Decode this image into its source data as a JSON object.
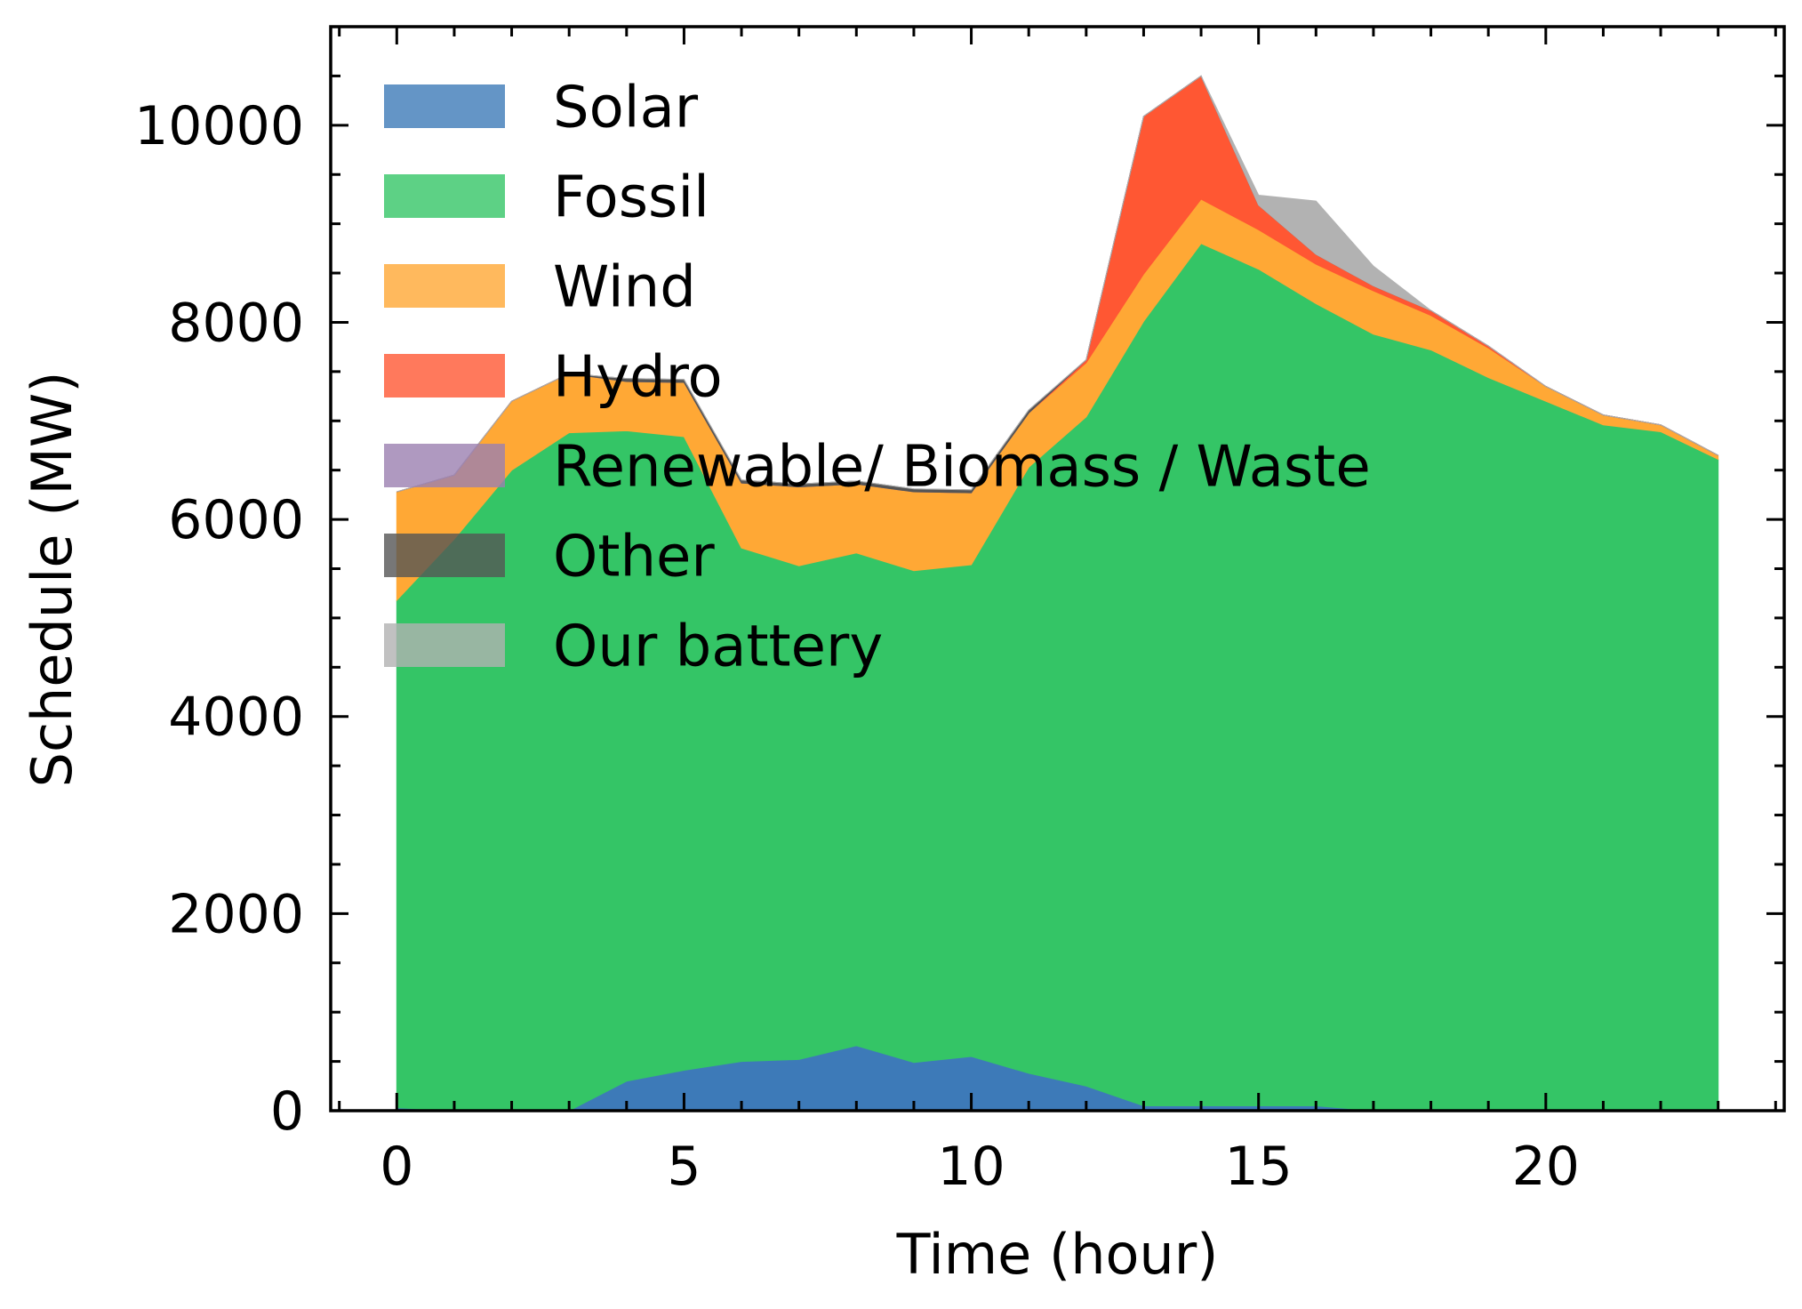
{
  "chart_data": {
    "type": "area",
    "stacked": true,
    "xlabel": "Time (hour)",
    "ylabel": "Schedule (MW)",
    "xlim": [
      -1.15,
      24.15
    ],
    "ylim": [
      0,
      11000
    ],
    "xticks": [
      0,
      5,
      10,
      15,
      20
    ],
    "yticks": [
      0,
      2000,
      4000,
      6000,
      8000,
      10000
    ],
    "xtick_labels": [
      "0",
      "5",
      "10",
      "15",
      "20"
    ],
    "ytick_labels": [
      "0",
      "2000",
      "4000",
      "6000",
      "8000",
      "10000"
    ],
    "legend_position": "upper-left",
    "grid": false,
    "x": [
      0,
      1,
      2,
      3,
      4,
      5,
      6,
      7,
      8,
      9,
      10,
      11,
      12,
      13,
      14,
      15,
      16,
      17,
      18,
      19,
      20,
      21,
      22,
      23
    ],
    "series": [
      {
        "name": "Solar",
        "color": "#3d7ab8",
        "values": [
          30,
          0,
          0,
          0,
          300,
          410,
          500,
          520,
          660,
          490,
          550,
          380,
          250,
          50,
          50,
          50,
          50,
          0,
          0,
          0,
          0,
          0,
          0,
          0
        ]
      },
      {
        "name": "Fossil",
        "color": "#34c566",
        "values": [
          5150,
          5800,
          6500,
          6880,
          6600,
          6430,
          5210,
          5010,
          5000,
          4990,
          4990,
          6150,
          6790,
          7960,
          8750,
          8490,
          8140,
          7880,
          7720,
          7440,
          7200,
          6960,
          6890,
          6610
        ]
      },
      {
        "name": "Wind",
        "color": "#ffa835",
        "values": [
          1100,
          650,
          700,
          600,
          500,
          550,
          660,
          800,
          700,
          800,
          730,
          550,
          550,
          480,
          450,
          400,
          400,
          440,
          350,
          300,
          150,
          100,
          70,
          40
        ]
      },
      {
        "name": "Hydro",
        "color": "#ff5733",
        "values": [
          0,
          0,
          0,
          0,
          0,
          0,
          0,
          0,
          0,
          0,
          0,
          0,
          30,
          1600,
          1250,
          250,
          100,
          50,
          50,
          20,
          0,
          0,
          0,
          0
        ]
      },
      {
        "name": "Renewable/ Biomass / Waste",
        "color": "#9b7fb0",
        "values": [
          0,
          0,
          0,
          0,
          0,
          0,
          0,
          0,
          0,
          0,
          0,
          0,
          0,
          0,
          0,
          0,
          0,
          0,
          0,
          0,
          0,
          0,
          0,
          0
        ]
      },
      {
        "name": "Other",
        "color": "#555555",
        "values": [
          0,
          0,
          0,
          0,
          30,
          30,
          30,
          30,
          30,
          30,
          30,
          30,
          0,
          0,
          0,
          0,
          0,
          0,
          0,
          0,
          0,
          0,
          0,
          0
        ]
      },
      {
        "name": "Our battery",
        "color": "#b2b2b2",
        "values": [
          0,
          0,
          0,
          0,
          0,
          0,
          0,
          0,
          0,
          0,
          0,
          0,
          0,
          0,
          0,
          100,
          540,
          200,
          0,
          0,
          0,
          0,
          0,
          0
        ]
      }
    ]
  }
}
